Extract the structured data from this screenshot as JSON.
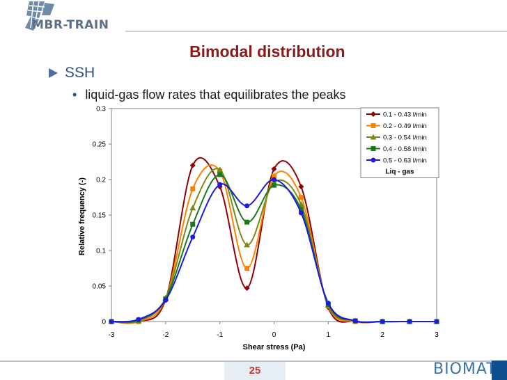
{
  "header": {
    "logo_text": "MBR-TRAIN",
    "title": "Bimodal distribution"
  },
  "bullets": {
    "level1": "SSH",
    "level2": "liquid-gas flow rates that equilibrates the peaks"
  },
  "colors": {
    "title": "#8b1a1a",
    "series": [
      "#8b0000",
      "#ff8000",
      "#7a8a1a",
      "#1a7a1a",
      "#1a1ae0"
    ]
  },
  "chart_data": {
    "type": "line",
    "xlabel": "Shear stress (Pa)",
    "ylabel": "Relative frequency (-)",
    "xlim": [
      -3,
      3
    ],
    "ylim": [
      0,
      0.3
    ],
    "xticks": [
      "-3",
      "-2",
      "-1",
      "0",
      "1",
      "2",
      "3"
    ],
    "yticks": [
      "0",
      "0.05",
      "0.1",
      "0.15",
      "0.2",
      "0.25",
      "0.3"
    ],
    "legend_title": "Liq - gas",
    "legend_position": "top-right",
    "grid": false,
    "series": [
      {
        "name": "0.1 - 0.43 l/min",
        "marker": "diamond",
        "x": [
          -3,
          -2.5,
          -2,
          -1.5,
          -1,
          -0.5,
          0,
          0.5,
          1,
          1.5,
          2,
          2.5,
          3
        ],
        "y": [
          0,
          0,
          0.031,
          0.22,
          0.19,
          0.047,
          0.215,
          0.19,
          0.02,
          0,
          0,
          0,
          0
        ]
      },
      {
        "name": "0.2 - 0.49 l/min",
        "marker": "square",
        "x": [
          -3,
          -2.5,
          -2,
          -1.5,
          -1,
          -0.5,
          0,
          0.5,
          1,
          1.5,
          2,
          2.5,
          3
        ],
        "y": [
          0,
          0,
          0.032,
          0.187,
          0.212,
          0.075,
          0.205,
          0.175,
          0.022,
          0,
          0,
          0,
          0
        ]
      },
      {
        "name": "0.3 - 0.54 l/min",
        "marker": "triangle",
        "x": [
          -3,
          -2.5,
          -2,
          -1.5,
          -1,
          -0.5,
          0,
          0.5,
          1,
          1.5,
          2,
          2.5,
          3
        ],
        "y": [
          0,
          0.001,
          0.033,
          0.16,
          0.214,
          0.108,
          0.196,
          0.165,
          0.023,
          0.001,
          0,
          0,
          0
        ]
      },
      {
        "name": "0.4 - 0.58 l/min",
        "marker": "square",
        "x": [
          -3,
          -2.5,
          -2,
          -1.5,
          -1,
          -0.5,
          0,
          0.5,
          1,
          1.5,
          2,
          2.5,
          3
        ],
        "y": [
          0,
          0.002,
          0.032,
          0.137,
          0.207,
          0.14,
          0.192,
          0.158,
          0.024,
          0.001,
          0,
          0,
          0
        ]
      },
      {
        "name": "0.5 - 0.63 l/min",
        "marker": "circle",
        "x": [
          -3,
          -2.5,
          -2,
          -1.5,
          -1,
          -0.5,
          0,
          0.5,
          1,
          1.5,
          2,
          2.5,
          3
        ],
        "y": [
          0,
          0.003,
          0.03,
          0.119,
          0.193,
          0.163,
          0.2,
          0.153,
          0.026,
          0.001,
          0,
          0,
          0
        ]
      }
    ]
  },
  "footer": {
    "page_number": "25",
    "brand": "BIOMATH"
  }
}
